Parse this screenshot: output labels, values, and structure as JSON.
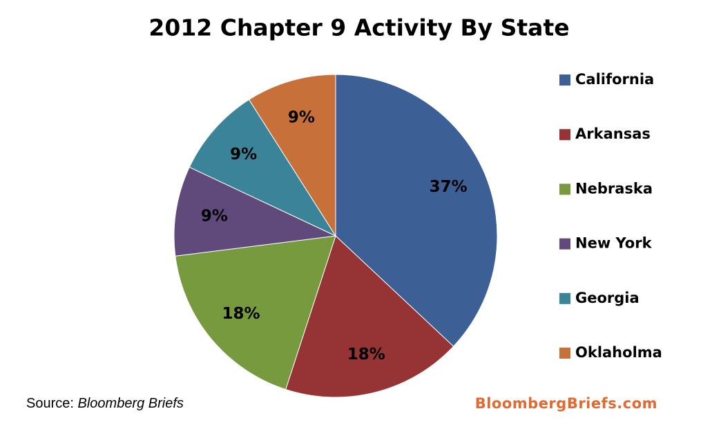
{
  "chart_data": {
    "type": "pie",
    "title": "2012 Chapter 9 Activity By State",
    "categories": [
      "California",
      "Arkansas",
      "Nebraska",
      "New York",
      "Georgia",
      "Oklaholma"
    ],
    "values": [
      37,
      18,
      18,
      9,
      9,
      9
    ],
    "value_labels": [
      "37%",
      "18%",
      "18%",
      "9%",
      "9%",
      "9%"
    ],
    "colors": [
      "#3c5f96",
      "#963335",
      "#779a3f",
      "#5f4a7b",
      "#3a8399",
      "#c8703a"
    ],
    "legend": "right",
    "source_label": "Source:",
    "source": "Bloomberg Briefs",
    "watermark": "BloombergBriefs.com"
  }
}
